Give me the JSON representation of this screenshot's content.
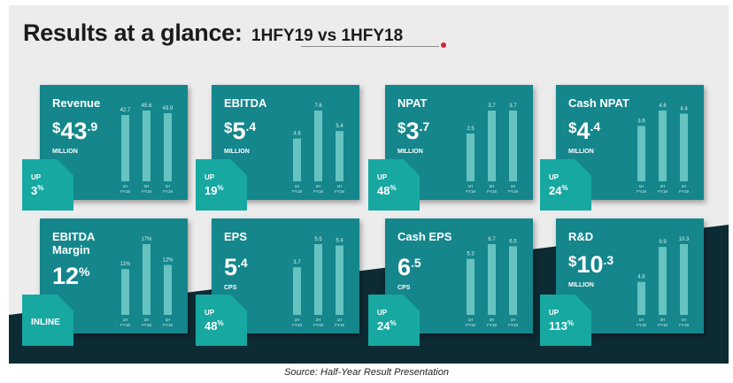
{
  "title": {
    "main": "Results at a glance:",
    "sub": "1HFY19 vs 1HFY18"
  },
  "caption": "Source: Half-Year Result Presentation",
  "colors": {
    "card": "#14868c",
    "bar": "#66c3c0",
    "badge": "#17a8a2",
    "background_light": "#ececec",
    "background_dark": "#0d2b33"
  },
  "cards": [
    {
      "label": "Revenue",
      "value": {
        "prefix": "$",
        "int": "43",
        "dec": ".9"
      },
      "unit": "MILLION",
      "badge": {
        "dir": "UP",
        "pct": "3",
        "sym": "%"
      }
    },
    {
      "label": "EBITDA",
      "value": {
        "prefix": "$",
        "int": "5",
        "dec": ".4"
      },
      "unit": "MILLION",
      "badge": {
        "dir": "UP",
        "pct": "19",
        "sym": "%"
      }
    },
    {
      "label": "NPAT",
      "value": {
        "prefix": "$",
        "int": "3",
        "dec": ".7"
      },
      "unit": "MILLION",
      "badge": {
        "dir": "UP",
        "pct": "48",
        "sym": "%"
      }
    },
    {
      "label": "Cash NPAT",
      "value": {
        "prefix": "$",
        "int": "4",
        "dec": ".4"
      },
      "unit": "MILLION",
      "badge": {
        "dir": "UP",
        "pct": "24",
        "sym": "%"
      }
    },
    {
      "label": "EBITDA Margin",
      "value": {
        "prefix": "",
        "int": "12",
        "dec": "%"
      },
      "unit": "",
      "badge": {
        "dir": "",
        "pct": "",
        "sym": "",
        "inline": "INLINE"
      }
    },
    {
      "label": "EPS",
      "value": {
        "prefix": "",
        "int": "5",
        "dec": ".4"
      },
      "unit": "CPS",
      "badge": {
        "dir": "UP",
        "pct": "48",
        "sym": "%"
      }
    },
    {
      "label": "Cash EPS",
      "value": {
        "prefix": "",
        "int": "6",
        "dec": ".5"
      },
      "unit": "CPS",
      "badge": {
        "dir": "UP",
        "pct": "24",
        "sym": "%"
      }
    },
    {
      "label": "R&D",
      "value": {
        "prefix": "$",
        "int": "10",
        "dec": ".3"
      },
      "unit": "MILLION",
      "badge": {
        "dir": "UP",
        "pct": "113",
        "sym": "%"
      }
    }
  ],
  "chart_data": [
    {
      "type": "bar",
      "title": "Revenue",
      "categories": [
        "1H FY18",
        "2H FY18",
        "1H FY19"
      ],
      "values": [
        42.7,
        45.6,
        43.9
      ],
      "value_labels": [
        "42.7",
        "45.6",
        "43.9"
      ],
      "ylim": [
        0,
        45.6
      ]
    },
    {
      "type": "bar",
      "title": "EBITDA",
      "categories": [
        "1H FY18",
        "2H FY18",
        "1H FY19"
      ],
      "values": [
        4.6,
        7.6,
        5.4
      ],
      "value_labels": [
        "4.6",
        "7.6",
        "5.4"
      ],
      "ylim": [
        0,
        7.6
      ]
    },
    {
      "type": "bar",
      "title": "NPAT",
      "categories": [
        "1H FY18",
        "2H FY18",
        "1H FY19"
      ],
      "values": [
        2.5,
        3.7,
        3.7
      ],
      "value_labels": [
        "2.5",
        "3.7",
        "3.7"
      ],
      "ylim": [
        0,
        3.7
      ]
    },
    {
      "type": "bar",
      "title": "Cash NPAT",
      "categories": [
        "1H FY18",
        "2H FY18",
        "1H FY19"
      ],
      "values": [
        3.6,
        4.6,
        4.4
      ],
      "value_labels": [
        "3.6",
        "4.6",
        "4.4"
      ],
      "ylim": [
        0,
        4.6
      ]
    },
    {
      "type": "bar",
      "title": "EBITDA Margin",
      "categories": [
        "1H FY18",
        "2H FY18",
        "1H FY19"
      ],
      "values": [
        11,
        17,
        12
      ],
      "value_labels": [
        "11%",
        "17%",
        "12%"
      ],
      "ylim": [
        0,
        17
      ]
    },
    {
      "type": "bar",
      "title": "EPS",
      "categories": [
        "1H FY18",
        "2H FY18",
        "1H FY19"
      ],
      "values": [
        3.7,
        5.5,
        5.4
      ],
      "value_labels": [
        "3.7",
        "5.5",
        "5.4"
      ],
      "ylim": [
        0,
        5.5
      ]
    },
    {
      "type": "bar",
      "title": "Cash EPS",
      "categories": [
        "1H FY18",
        "2H FY18",
        "1H FY19"
      ],
      "values": [
        5.3,
        6.7,
        6.5
      ],
      "value_labels": [
        "5.3",
        "6.7",
        "6.5"
      ],
      "ylim": [
        0,
        6.7
      ]
    },
    {
      "type": "bar",
      "title": "R&D",
      "categories": [
        "1H FY18",
        "2H FY18",
        "1H FY19"
      ],
      "values": [
        4.8,
        9.9,
        10.3
      ],
      "value_labels": [
        "4.8",
        "9.9",
        "10.3"
      ],
      "ylim": [
        0,
        10.3
      ]
    }
  ]
}
